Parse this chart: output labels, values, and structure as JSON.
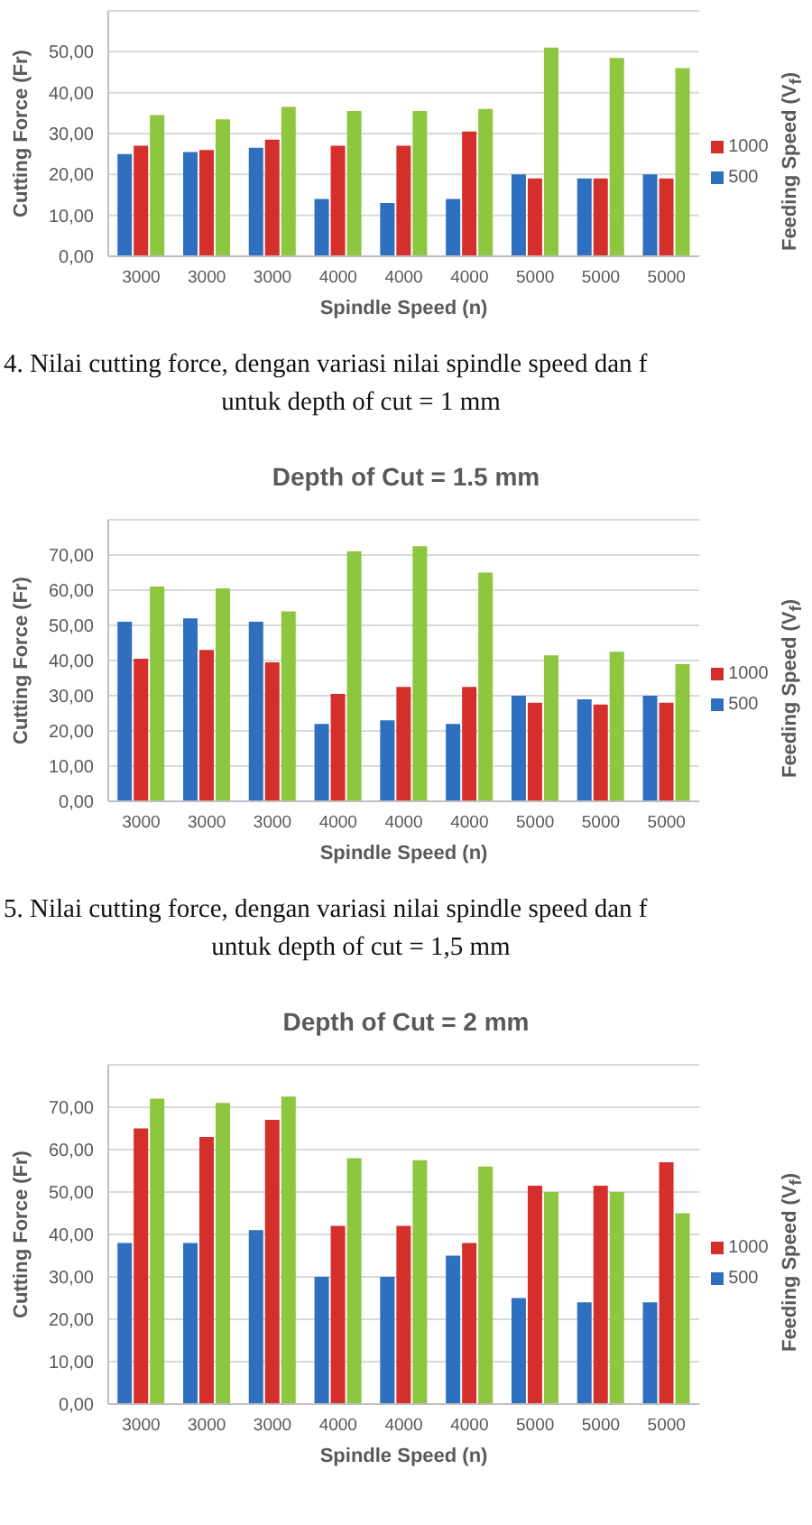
{
  "chart_data": [
    {
      "type": "bar",
      "xlabel": "Spindle Speed (n)",
      "ylabel": "Cutting Force (Fr)",
      "legend_title": "Feeding Speed (V$_{f}$)",
      "categories": [
        "3000",
        "3000",
        "3000",
        "4000",
        "4000",
        "4000",
        "5000",
        "5000",
        "5000"
      ],
      "series": [
        {
          "name": "500",
          "color": "#2f6fc0",
          "values": [
            25,
            25.5,
            26.5,
            14,
            13,
            14,
            20,
            19,
            20
          ]
        },
        {
          "name": "1000",
          "color": "#d42f2a",
          "values": [
            27,
            26,
            28.5,
            27,
            27,
            30.5,
            19,
            19,
            19
          ]
        },
        {
          "color": "#8dc63f",
          "values": [
            34.5,
            33.5,
            36.5,
            35.5,
            35.5,
            36,
            51,
            48.5,
            46
          ]
        }
      ],
      "ylim": [
        0,
        60
      ],
      "yticks": [
        {
          "value": 0,
          "label": "0,00"
        },
        {
          "value": 10,
          "label": "10,00"
        },
        {
          "value": 20,
          "label": "20,00"
        },
        {
          "value": 30,
          "label": "30,00"
        },
        {
          "value": 40,
          "label": "40,00"
        },
        {
          "value": 50,
          "label": "50,00"
        },
        {
          "value": 60,
          "label": null
        }
      ],
      "grid": "y",
      "legend": "right",
      "annotations": [
        "4. Nilai cutting force, dengan variasi nilai spindle speed dan f",
        "untuk depth of cut = 1 mm"
      ]
    },
    {
      "type": "bar",
      "title": "Depth of Cut = 1.5 mm",
      "xlabel": "Spindle Speed (n)",
      "ylabel": "Cutting Force (Fr)",
      "legend_title": "Feeding Speed (V$_{f}$)",
      "categories": [
        "3000",
        "3000",
        "3000",
        "4000",
        "4000",
        "4000",
        "5000",
        "5000",
        "5000"
      ],
      "series": [
        {
          "name": "500",
          "color": "#2f6fc0",
          "values": [
            51,
            52,
            51,
            22,
            23,
            22,
            30,
            29,
            30
          ]
        },
        {
          "name": "1000",
          "color": "#d42f2a",
          "values": [
            40.5,
            43,
            39.5,
            30.5,
            32.5,
            32.5,
            28,
            27.5,
            28
          ]
        },
        {
          "color": "#8dc63f",
          "values": [
            61,
            60.5,
            54,
            71,
            72.5,
            65,
            41.5,
            42.5,
            39
          ]
        }
      ],
      "ylim": [
        0,
        80
      ],
      "yticks": [
        {
          "value": 0,
          "label": "0,00"
        },
        {
          "value": 10,
          "label": "10,00"
        },
        {
          "value": 20,
          "label": "20,00"
        },
        {
          "value": 30,
          "label": "30,00"
        },
        {
          "value": 40,
          "label": "40,00"
        },
        {
          "value": 50,
          "label": "50,00"
        },
        {
          "value": 60,
          "label": "60,00"
        },
        {
          "value": 70,
          "label": "70,00"
        },
        {
          "value": 80,
          "label": null
        }
      ],
      "grid": "y",
      "legend": "right",
      "annotations": [
        "5. Nilai cutting force, dengan variasi nilai spindle speed dan f",
        "untuk depth of cut = 1,5 mm"
      ]
    },
    {
      "type": "bar",
      "title": "Depth of Cut = 2 mm",
      "xlabel": "Spindle Speed (n)",
      "ylabel": "Cutting Force (Fr)",
      "legend_title": "Feeding Speed (V$_{f}$)",
      "categories": [
        "3000",
        "3000",
        "3000",
        "4000",
        "4000",
        "4000",
        "5000",
        "5000",
        "5000"
      ],
      "series": [
        {
          "name": "500",
          "color": "#2f6fc0",
          "values": [
            38,
            38,
            41,
            30,
            30,
            35,
            25,
            24,
            24
          ]
        },
        {
          "name": "1000",
          "color": "#d42f2a",
          "values": [
            65,
            63,
            67,
            42,
            42,
            38,
            51.5,
            51.5,
            57
          ]
        },
        {
          "color": "#8dc63f",
          "values": [
            72,
            71,
            72.5,
            58,
            57.5,
            56,
            50,
            50,
            45
          ]
        }
      ],
      "ylim": [
        0,
        80
      ],
      "yticks": [
        {
          "value": 0,
          "label": "0,00"
        },
        {
          "value": 10,
          "label": "10,00"
        },
        {
          "value": 20,
          "label": "20,00"
        },
        {
          "value": 30,
          "label": "30,00"
        },
        {
          "value": 40,
          "label": "40,00"
        },
        {
          "value": 50,
          "label": "50,00"
        },
        {
          "value": 60,
          "label": "60,00"
        },
        {
          "value": 70,
          "label": "70,00"
        },
        {
          "value": 80,
          "label": null
        }
      ],
      "grid": "y",
      "legend": "right"
    }
  ]
}
